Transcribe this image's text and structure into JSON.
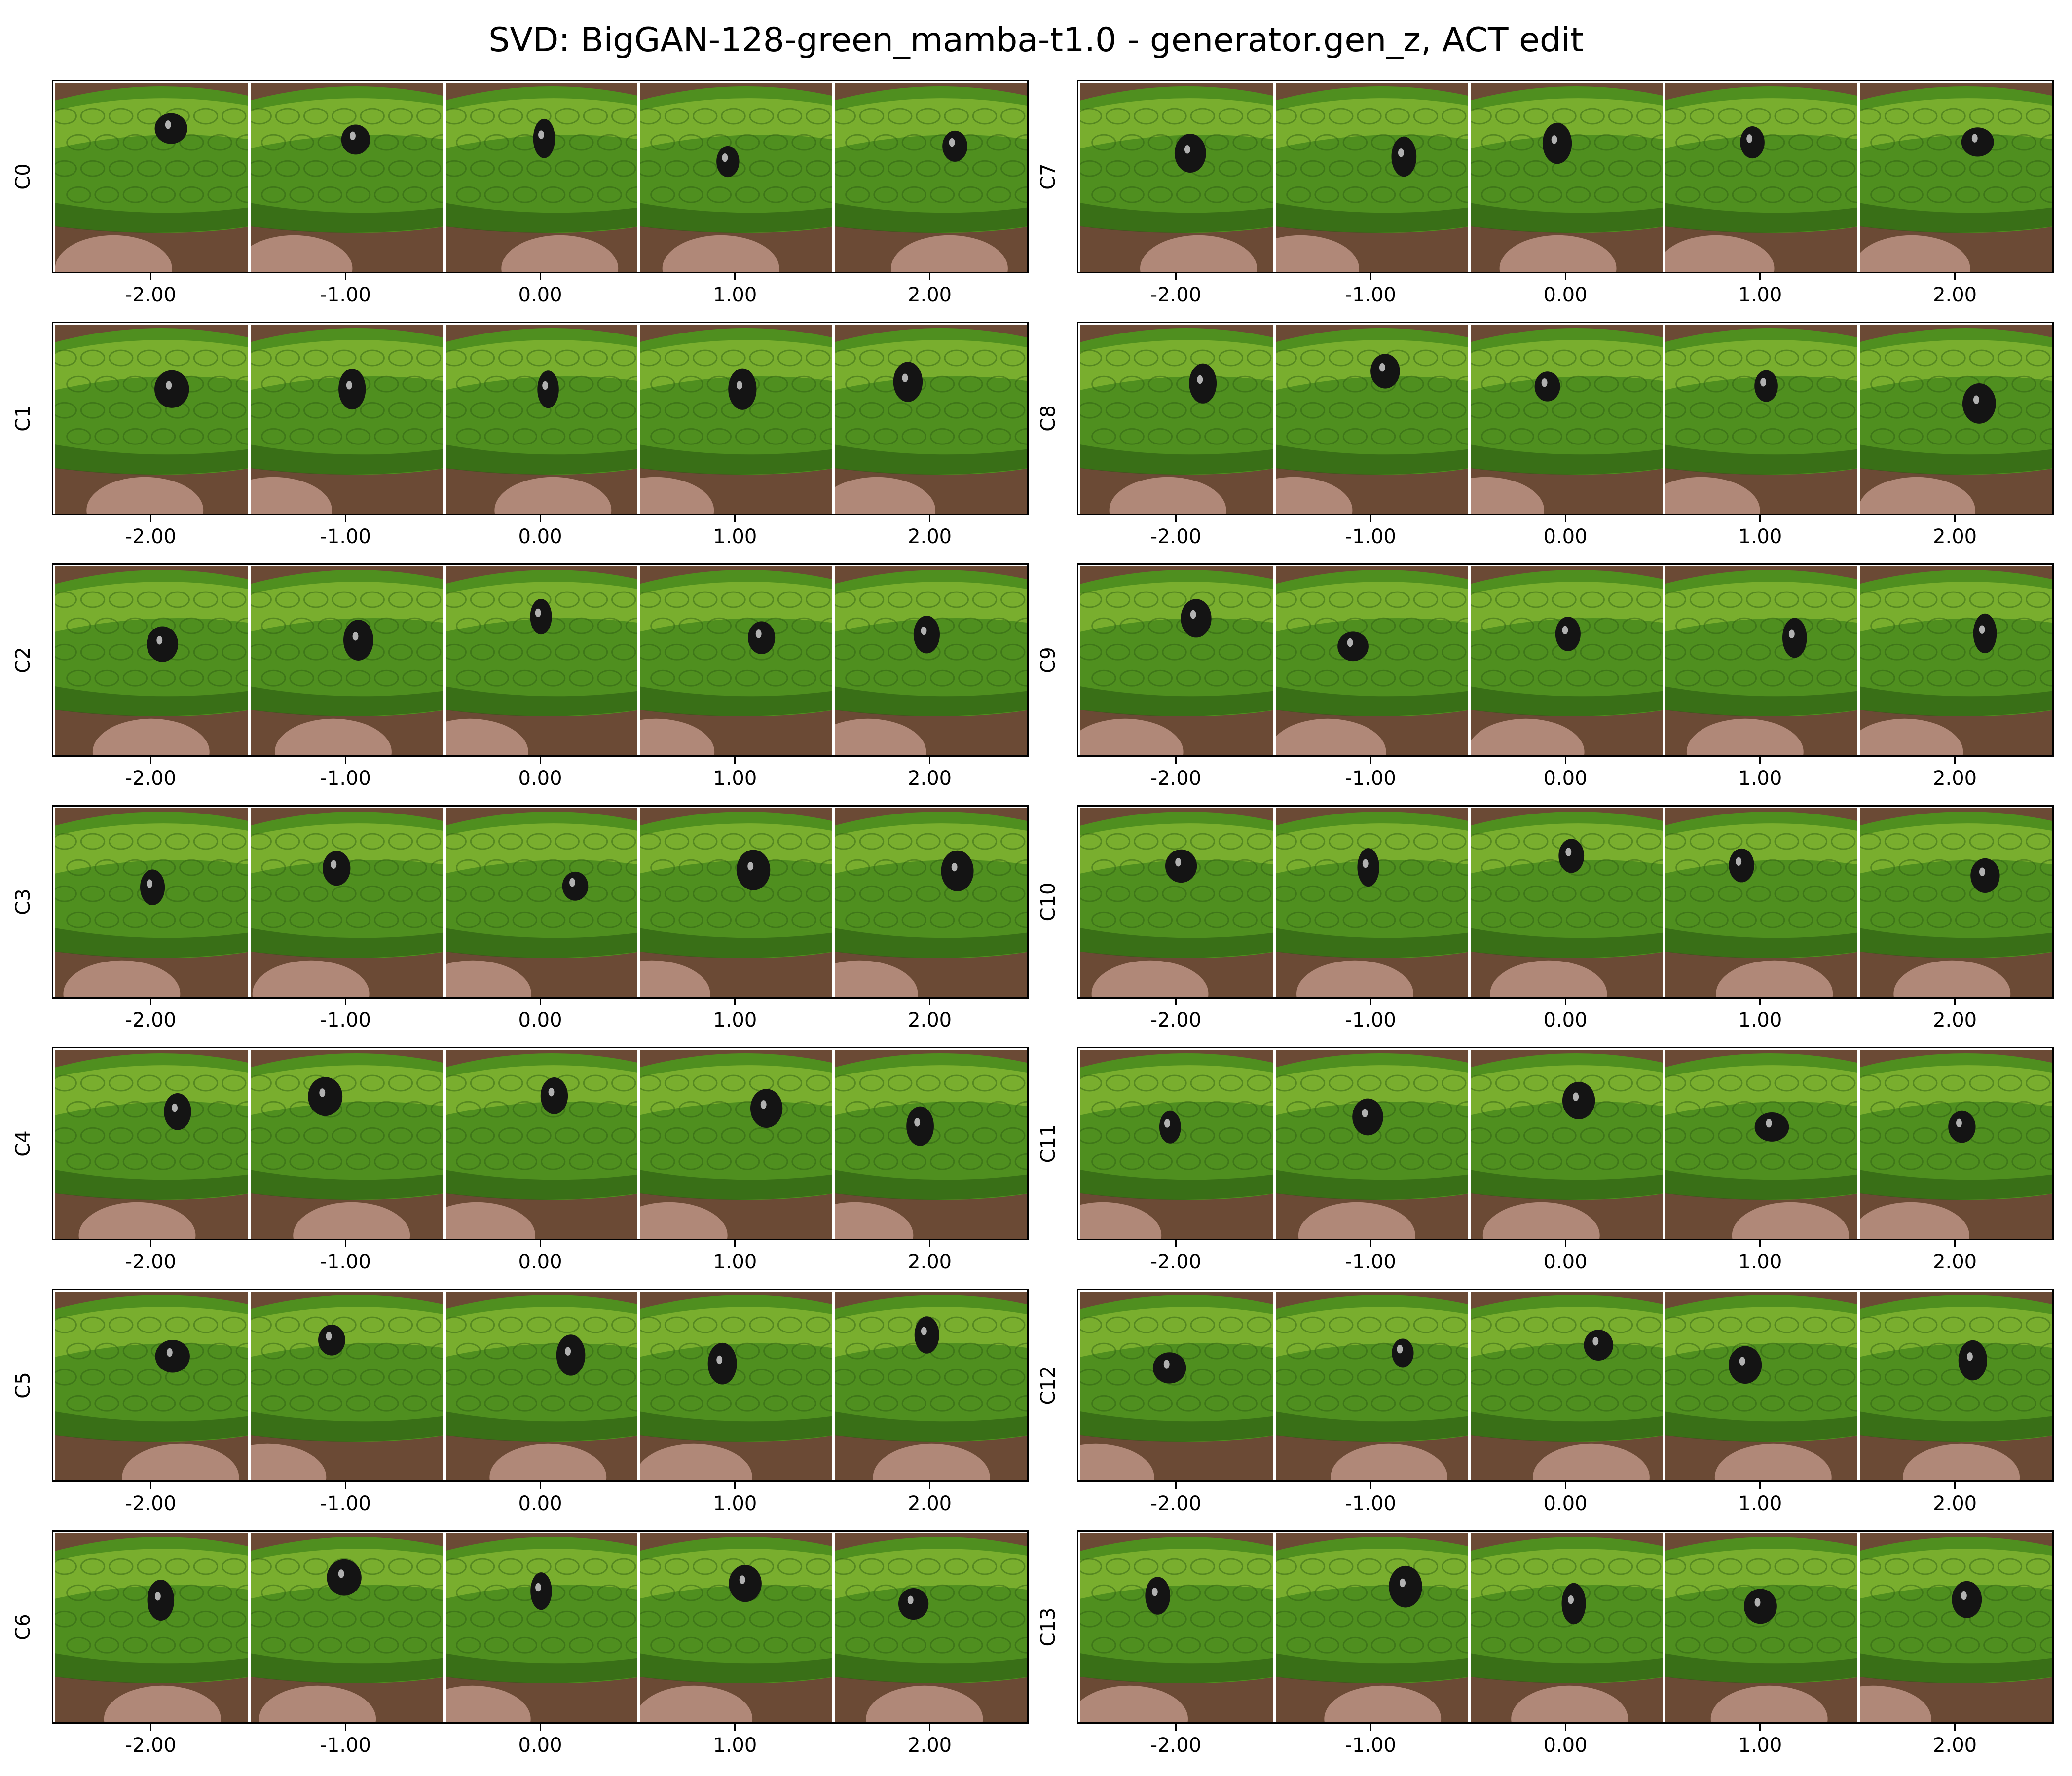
{
  "figure": {
    "title": "SVD: BigGAN-128-green_mamba-t1.0 - generator.gen_z, ACT edit",
    "x_tick_labels": [
      "-2.00",
      "-1.00",
      "0.00",
      "1.00",
      "2.00"
    ],
    "panels": [
      {
        "label": "C0"
      },
      {
        "label": "C1"
      },
      {
        "label": "C2"
      },
      {
        "label": "C3"
      },
      {
        "label": "C4"
      },
      {
        "label": "C5"
      },
      {
        "label": "C6"
      },
      {
        "label": "C7"
      },
      {
        "label": "C8"
      },
      {
        "label": "C9"
      },
      {
        "label": "C10"
      },
      {
        "label": "C11"
      },
      {
        "label": "C12"
      },
      {
        "label": "C13"
      }
    ]
  },
  "image_content": {
    "description_icon": "snake-head-thumbnail",
    "colors": {
      "snake_green": "#4f8f1f",
      "snake_light": "#9cc83a",
      "snake_dark": "#2c5a12",
      "background_brown": "#6b4a35",
      "hand_skin": "#b08878",
      "eye_black": "#141414"
    }
  }
}
